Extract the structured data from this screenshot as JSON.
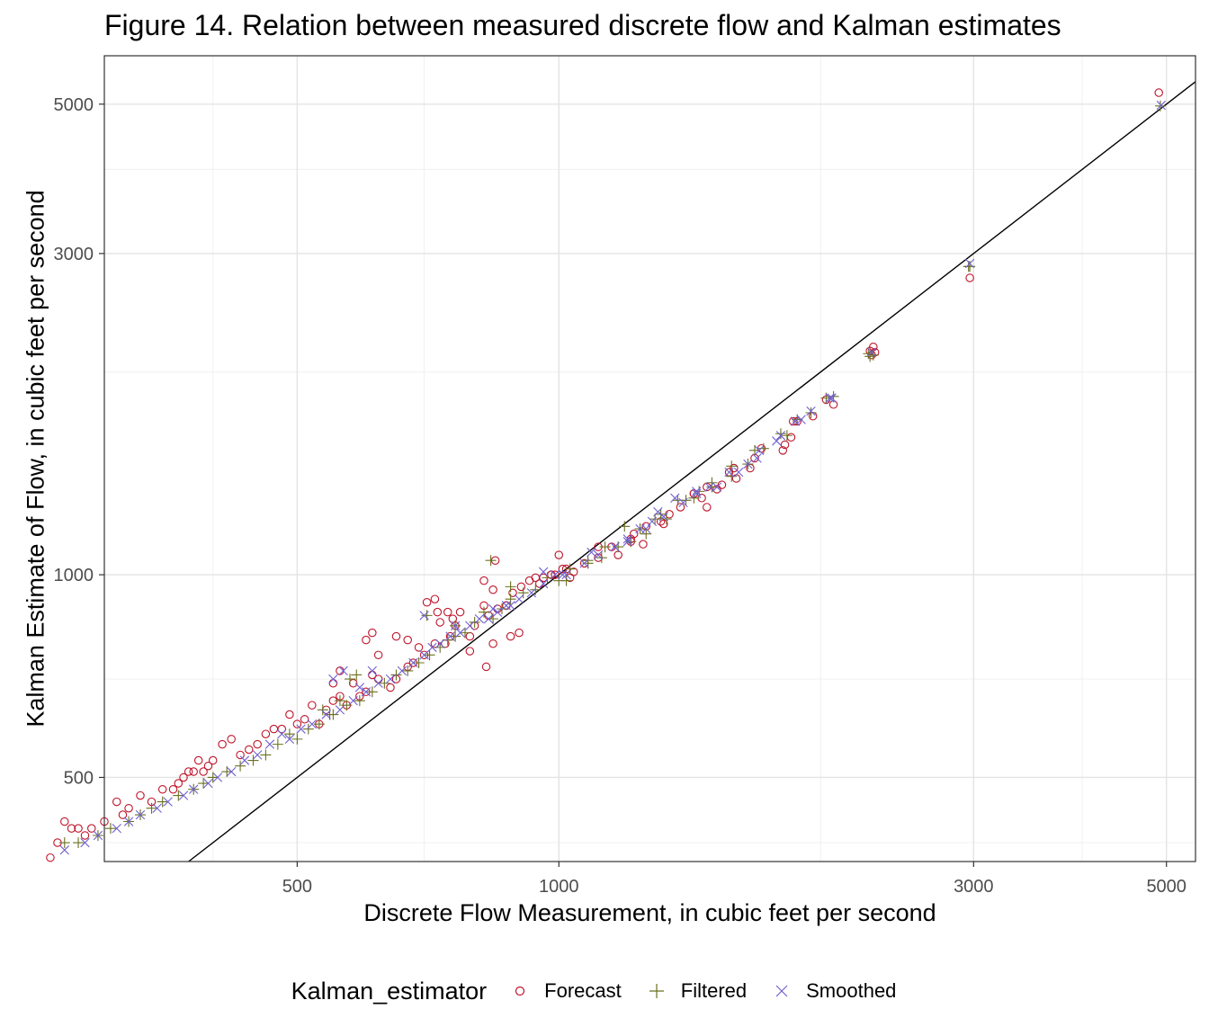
{
  "chart_data": {
    "type": "scatter",
    "title": "Figure 14. Relation between measured discrete flow and Kalman estimates",
    "xlabel": "Discrete Flow Measurement, in cubic feet per second",
    "ylabel": "Kalman Estimate of Flow, in cubic feet per second",
    "x_scale": "log",
    "y_scale": "log",
    "xlim": [
      300,
      5400
    ],
    "ylim": [
      375,
      5900
    ],
    "x_ticks": [
      500,
      1000,
      3000,
      5000
    ],
    "x_tick_labels": [
      "500",
      "1000",
      "3000",
      "5000"
    ],
    "x_minor_gridlines": [
      400,
      700,
      2000,
      4000
    ],
    "y_ticks": [
      500,
      1000,
      3000,
      5000
    ],
    "y_tick_labels": [
      "500",
      "1000",
      "3000",
      "5000"
    ],
    "y_minor_gridlines": [
      400,
      700,
      2000,
      4000
    ],
    "grid": true,
    "reference_line": "1:1",
    "legend_title": "Kalman_estimator",
    "legend_position": "bottom",
    "series": [
      {
        "name": "Forecast",
        "marker": "circle",
        "color": "#c0142a",
        "points": [
          [
            4900,
            5200
          ],
          [
            2970,
            2760
          ],
          [
            2300,
            2180
          ],
          [
            2280,
            2150
          ],
          [
            2070,
            1790
          ],
          [
            1960,
            1720
          ],
          [
            1880,
            1690
          ],
          [
            1860,
            1690
          ],
          [
            1810,
            1530
          ],
          [
            1710,
            1540
          ],
          [
            1660,
            1440
          ],
          [
            1600,
            1390
          ],
          [
            1540,
            1360
          ],
          [
            1520,
            1340
          ],
          [
            1480,
            1260
          ],
          [
            1460,
            1300
          ],
          [
            1430,
            1320
          ],
          [
            1340,
            1230
          ],
          [
            1320,
            1190
          ],
          [
            1260,
            1180
          ],
          [
            1250,
            1110
          ],
          [
            1220,
            1150
          ],
          [
            1210,
            1130
          ],
          [
            1150,
            1100
          ],
          [
            1110,
            1060
          ],
          [
            1070,
            1040
          ],
          [
            1030,
            990
          ],
          [
            1010,
            1020
          ],
          [
            990,
            1000
          ],
          [
            1000,
            1070
          ],
          [
            980,
            1000
          ],
          [
            960,
            990
          ],
          [
            950,
            970
          ],
          [
            925,
            980
          ],
          [
            905,
            960
          ],
          [
            885,
            940
          ],
          [
            880,
            810
          ],
          [
            870,
            900
          ],
          [
            850,
            890
          ],
          [
            840,
            950
          ],
          [
            830,
            870
          ],
          [
            820,
            900
          ],
          [
            800,
            840
          ],
          [
            790,
            810
          ],
          [
            770,
            880
          ],
          [
            760,
            840
          ],
          [
            750,
            810
          ],
          [
            740,
            790
          ],
          [
            730,
            850
          ],
          [
            720,
            790
          ],
          [
            700,
            760
          ],
          [
            690,
            780
          ],
          [
            680,
            740
          ],
          [
            670,
            730
          ],
          [
            650,
            700
          ],
          [
            640,
            680
          ],
          [
            620,
            700
          ],
          [
            610,
            710
          ],
          [
            600,
            670
          ],
          [
            590,
            660
          ],
          [
            580,
            690
          ],
          [
            570,
            640
          ],
          [
            560,
            660
          ],
          [
            550,
            650
          ],
          [
            540,
            630
          ],
          [
            530,
            600
          ],
          [
            520,
            640
          ],
          [
            510,
            610
          ],
          [
            500,
            600
          ],
          [
            490,
            620
          ],
          [
            480,
            590
          ],
          [
            470,
            590
          ],
          [
            460,
            580
          ],
          [
            450,
            560
          ],
          [
            440,
            550
          ],
          [
            430,
            540
          ],
          [
            420,
            570
          ],
          [
            410,
            560
          ],
          [
            400,
            530
          ],
          [
            395,
            520
          ],
          [
            390,
            510
          ],
          [
            385,
            530
          ],
          [
            380,
            510
          ],
          [
            375,
            510
          ],
          [
            370,
            500
          ],
          [
            365,
            490
          ],
          [
            360,
            480
          ],
          [
            350,
            480
          ],
          [
            340,
            460
          ],
          [
            330,
            470
          ],
          [
            320,
            450
          ],
          [
            315,
            440
          ],
          [
            310,
            460
          ],
          [
            300,
            430
          ],
          [
            290,
            420
          ],
          [
            285,
            410
          ],
          [
            280,
            420
          ],
          [
            275,
            420
          ],
          [
            270,
            430
          ],
          [
            265,
            400
          ],
          [
            260,
            380
          ],
          [
            550,
            690
          ],
          [
            560,
            720
          ],
          [
            600,
            800
          ],
          [
            610,
            820
          ],
          [
            620,
            760
          ],
          [
            650,
            810
          ],
          [
            670,
            800
          ],
          [
            705,
            910
          ],
          [
            720,
            920
          ],
          [
            725,
            880
          ],
          [
            745,
            880
          ],
          [
            755,
            860
          ],
          [
            790,
            770
          ],
          [
            825,
            730
          ],
          [
            840,
            790
          ],
          [
            845,
            1050
          ],
          [
            820,
            980
          ],
          [
            870,
            900
          ],
          [
            900,
            820
          ],
          [
            940,
            990
          ],
          [
            980,
            1000
          ],
          [
            1020,
            1020
          ],
          [
            1040,
            1010
          ],
          [
            1110,
            1100
          ],
          [
            1170,
            1070
          ],
          [
            1210,
            1120
          ],
          [
            1310,
            1200
          ],
          [
            1380,
            1260
          ],
          [
            1430,
            1320
          ],
          [
            1480,
            1350
          ],
          [
            1570,
            1420
          ],
          [
            1590,
            1440
          ],
          [
            1680,
            1490
          ],
          [
            1820,
            1560
          ],
          [
            1850,
            1600
          ],
          [
            2030,
            1820
          ],
          [
            2290,
            2120
          ],
          [
            2310,
            2140
          ]
        ]
      },
      {
        "name": "Filtered",
        "marker": "plus",
        "color": "#6b7020",
        "points": [
          [
            4920,
            4970
          ],
          [
            2970,
            2870
          ],
          [
            2300,
            2120
          ],
          [
            2270,
            2130
          ],
          [
            2070,
            1840
          ],
          [
            1950,
            1740
          ],
          [
            1880,
            1700
          ],
          [
            1800,
            1620
          ],
          [
            1720,
            1540
          ],
          [
            1650,
            1460
          ],
          [
            1580,
            1400
          ],
          [
            1500,
            1350
          ],
          [
            1450,
            1330
          ],
          [
            1400,
            1290
          ],
          [
            1330,
            1210
          ],
          [
            1290,
            1210
          ],
          [
            1260,
            1150
          ],
          [
            1210,
            1120
          ],
          [
            1170,
            1100
          ],
          [
            1120,
            1060
          ],
          [
            1080,
            1040
          ],
          [
            1030,
            1020
          ],
          [
            1000,
            980
          ],
          [
            970,
            990
          ],
          [
            940,
            950
          ],
          [
            910,
            940
          ],
          [
            880,
            920
          ],
          [
            860,
            890
          ],
          [
            840,
            860
          ],
          [
            820,
            880
          ],
          [
            800,
            850
          ],
          [
            780,
            820
          ],
          [
            760,
            810
          ],
          [
            745,
            800
          ],
          [
            730,
            780
          ],
          [
            710,
            760
          ],
          [
            690,
            740
          ],
          [
            670,
            720
          ],
          [
            650,
            710
          ],
          [
            630,
            690
          ],
          [
            610,
            670
          ],
          [
            590,
            650
          ],
          [
            570,
            640
          ],
          [
            550,
            620
          ],
          [
            530,
            600
          ],
          [
            515,
            590
          ],
          [
            500,
            570
          ],
          [
            490,
            580
          ],
          [
            475,
            560
          ],
          [
            460,
            540
          ],
          [
            445,
            530
          ],
          [
            430,
            520
          ],
          [
            415,
            510
          ],
          [
            400,
            500
          ],
          [
            390,
            490
          ],
          [
            380,
            480
          ],
          [
            365,
            470
          ],
          [
            350,
            460
          ],
          [
            340,
            450
          ],
          [
            330,
            440
          ],
          [
            320,
            430
          ],
          [
            305,
            420
          ],
          [
            295,
            410
          ],
          [
            280,
            400
          ],
          [
            270,
            400
          ],
          [
            535,
            630
          ],
          [
            545,
            620
          ],
          [
            560,
            650
          ],
          [
            575,
            700
          ],
          [
            585,
            710
          ],
          [
            705,
            870
          ],
          [
            760,
            840
          ],
          [
            835,
            1050
          ],
          [
            880,
            960
          ],
          [
            1020,
            980
          ],
          [
            1080,
            1050
          ],
          [
            1130,
            1100
          ],
          [
            1190,
            1180
          ],
          [
            1240,
            1170
          ],
          [
            1310,
            1230
          ],
          [
            1370,
            1290
          ],
          [
            1430,
            1300
          ],
          [
            1500,
            1370
          ],
          [
            1580,
            1450
          ],
          [
            1680,
            1530
          ],
          [
            1830,
            1610
          ],
          [
            2030,
            1830
          ],
          [
            2280,
            2110
          ],
          [
            2960,
            2870
          ]
        ]
      },
      {
        "name": "Smoothed",
        "marker": "x",
        "color": "#7060d0",
        "points": [
          [
            4930,
            4980
          ],
          [
            2970,
            2900
          ],
          [
            2290,
            2140
          ],
          [
            2060,
            1830
          ],
          [
            1950,
            1750
          ],
          [
            1870,
            1690
          ],
          [
            1800,
            1610
          ],
          [
            1700,
            1530
          ],
          [
            1650,
            1460
          ],
          [
            1570,
            1420
          ],
          [
            1490,
            1350
          ],
          [
            1440,
            1320
          ],
          [
            1390,
            1280
          ],
          [
            1320,
            1220
          ],
          [
            1280,
            1200
          ],
          [
            1240,
            1170
          ],
          [
            1200,
            1120
          ],
          [
            1160,
            1100
          ],
          [
            1110,
            1070
          ],
          [
            1070,
            1040
          ],
          [
            1020,
            1000
          ],
          [
            990,
            1000
          ],
          [
            960,
            970
          ],
          [
            930,
            940
          ],
          [
            900,
            920
          ],
          [
            870,
            900
          ],
          [
            850,
            880
          ],
          [
            830,
            860
          ],
          [
            810,
            860
          ],
          [
            790,
            840
          ],
          [
            770,
            820
          ],
          [
            750,
            810
          ],
          [
            730,
            790
          ],
          [
            715,
            780
          ],
          [
            700,
            760
          ],
          [
            680,
            740
          ],
          [
            660,
            720
          ],
          [
            640,
            700
          ],
          [
            620,
            690
          ],
          [
            600,
            670
          ],
          [
            580,
            650
          ],
          [
            560,
            630
          ],
          [
            540,
            620
          ],
          [
            520,
            600
          ],
          [
            505,
            590
          ],
          [
            490,
            570
          ],
          [
            480,
            580
          ],
          [
            465,
            560
          ],
          [
            450,
            540
          ],
          [
            435,
            530
          ],
          [
            420,
            510
          ],
          [
            405,
            500
          ],
          [
            395,
            490
          ],
          [
            380,
            480
          ],
          [
            370,
            470
          ],
          [
            355,
            460
          ],
          [
            345,
            450
          ],
          [
            330,
            440
          ],
          [
            320,
            430
          ],
          [
            310,
            420
          ],
          [
            295,
            410
          ],
          [
            285,
            400
          ],
          [
            270,
            390
          ],
          [
            550,
            700
          ],
          [
            565,
            720
          ],
          [
            590,
            680
          ],
          [
            610,
            720
          ],
          [
            700,
            870
          ],
          [
            760,
            840
          ],
          [
            840,
            890
          ],
          [
            880,
            900
          ],
          [
            960,
            1010
          ],
          [
            1010,
            1000
          ],
          [
            1090,
            1080
          ],
          [
            1160,
            1100
          ],
          [
            1200,
            1130
          ],
          [
            1260,
            1170
          ],
          [
            1300,
            1240
          ],
          [
            1360,
            1300
          ],
          [
            1440,
            1330
          ],
          [
            1520,
            1350
          ],
          [
            1610,
            1420
          ],
          [
            1690,
            1490
          ],
          [
            1780,
            1580
          ],
          [
            1900,
            1700
          ],
          [
            2050,
            1830
          ]
        ]
      }
    ]
  }
}
